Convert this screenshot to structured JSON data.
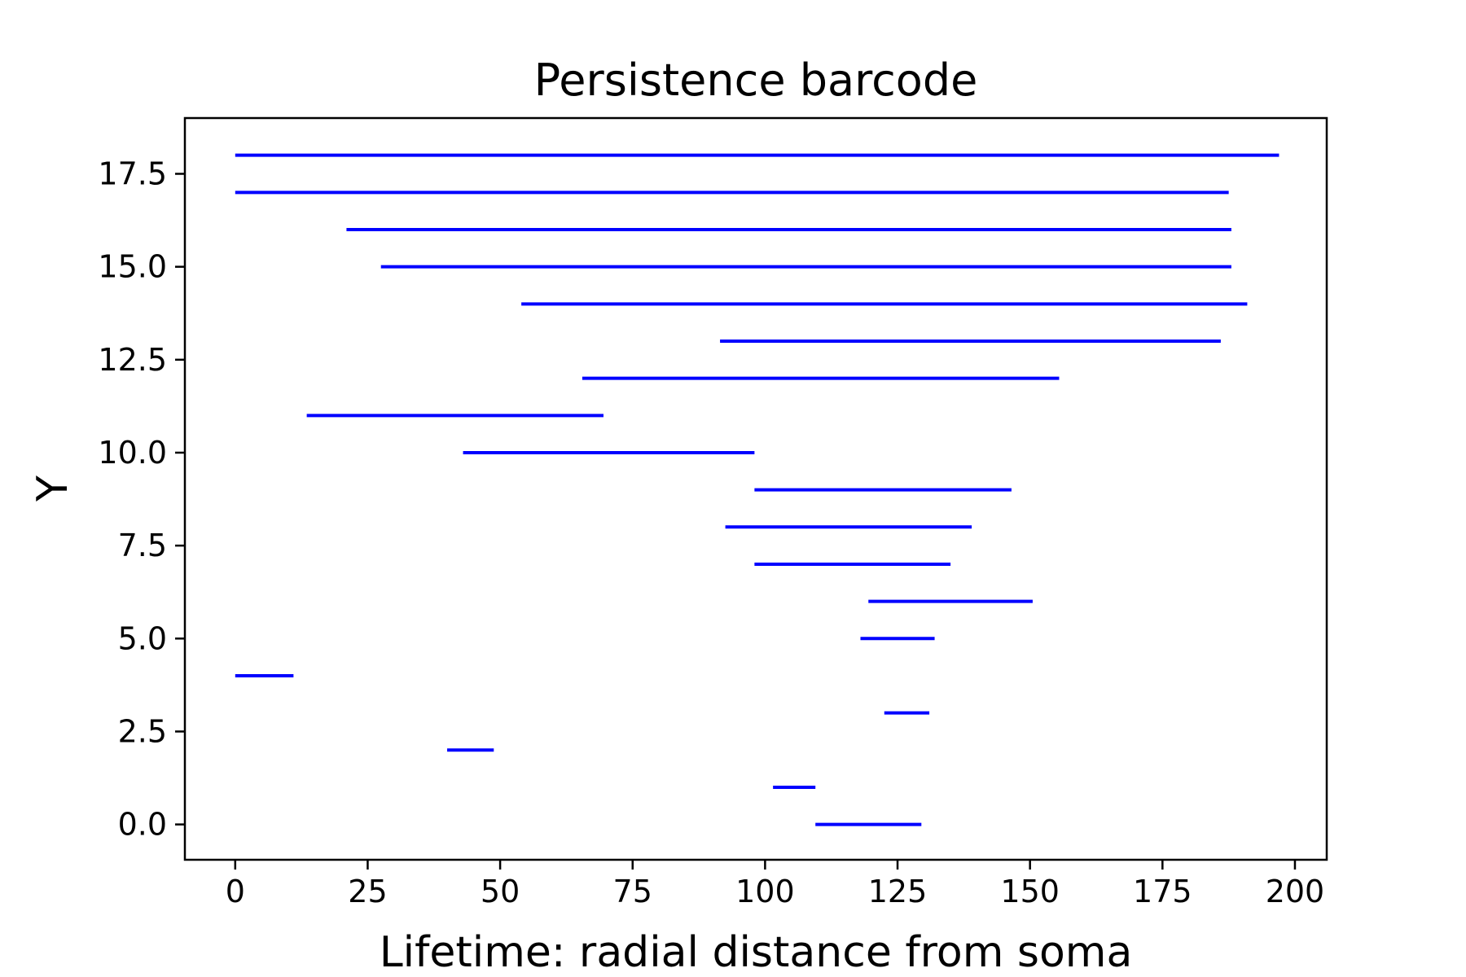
{
  "chart_data": {
    "type": "barcode",
    "title": "Persistence barcode",
    "xlabel": "Lifetime: radial distance from soma",
    "ylabel": "Y",
    "xlim": [
      -9.5,
      206
    ],
    "ylim": [
      -0.95,
      19
    ],
    "xticks": [
      0,
      25,
      50,
      75,
      100,
      125,
      150,
      175,
      200
    ],
    "xtick_labels": [
      "0",
      "25",
      "50",
      "75",
      "100",
      "125",
      "150",
      "175",
      "200"
    ],
    "yticks": [
      0,
      2.5,
      5,
      7.5,
      10,
      12.5,
      15,
      17.5
    ],
    "ytick_labels": [
      "0.0",
      "2.5",
      "5.0",
      "7.5",
      "10.0",
      "12.5",
      "15.0",
      "17.5"
    ],
    "grid": false,
    "color": "#0000ff",
    "bars": [
      {
        "y": 0,
        "start": 109.5,
        "end": 129.5
      },
      {
        "y": 1,
        "start": 101.5,
        "end": 109.5
      },
      {
        "y": 2,
        "start": 40,
        "end": 48.8
      },
      {
        "y": 3,
        "start": 122.5,
        "end": 131
      },
      {
        "y": 4,
        "start": 0,
        "end": 11
      },
      {
        "y": 5,
        "start": 118,
        "end": 132
      },
      {
        "y": 6,
        "start": 119.5,
        "end": 150.5
      },
      {
        "y": 7,
        "start": 98,
        "end": 135
      },
      {
        "y": 8,
        "start": 92.5,
        "end": 139
      },
      {
        "y": 9,
        "start": 98,
        "end": 146.5
      },
      {
        "y": 10,
        "start": 43,
        "end": 98
      },
      {
        "y": 11,
        "start": 13.5,
        "end": 69.5
      },
      {
        "y": 12,
        "start": 65.5,
        "end": 155.5
      },
      {
        "y": 13,
        "start": 91.5,
        "end": 186
      },
      {
        "y": 14,
        "start": 54,
        "end": 191
      },
      {
        "y": 15,
        "start": 27.5,
        "end": 188
      },
      {
        "y": 16,
        "start": 21,
        "end": 188
      },
      {
        "y": 17,
        "start": 0,
        "end": 187.5
      },
      {
        "y": 18,
        "start": 0,
        "end": 197
      }
    ]
  }
}
